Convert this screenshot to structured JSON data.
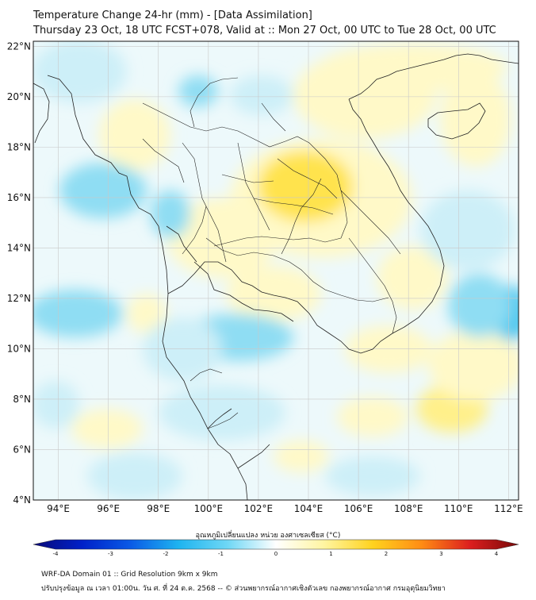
{
  "title_line1": "Temperature Change 24-hr (mm) - [Data Assimilation]",
  "title_line2": "Thursday 23 Oct, 18 UTC FCST+078, Valid at :: Mon 27 Oct, 00 UTC to Tue 28 Oct, 00 UTC",
  "lat_labels": [
    "22°N",
    "20°N",
    "18°N",
    "16°N",
    "14°N",
    "12°N",
    "10°N",
    "8°N",
    "6°N",
    "4°N"
  ],
  "lon_labels": [
    "94°E",
    "96°E",
    "98°E",
    "100°E",
    "102°E",
    "104°E",
    "106°E",
    "108°E",
    "110°E",
    "112°E"
  ],
  "colorbar": {
    "title": "อุณหภูมิเปลี่ยนแปลง หน่วย องศาเซลเซียส (°C)",
    "ticks": [
      "-4",
      "-3",
      "-2",
      "-1",
      "0",
      "1",
      "2",
      "3",
      "4"
    ],
    "colors": [
      "#0a0a78",
      "#0020c8",
      "#0a5ae6",
      "#1eb4f0",
      "#6ed7f5",
      "#ffffff",
      "#fff5a0",
      "#ffd21e",
      "#ff8c14",
      "#dc1e1e",
      "#780a0a"
    ]
  },
  "footer_line1": "WRF-DA Domain 01 :: Grid Resolution 9km x 9km",
  "footer_line2": "ปรับปรุงข้อมูล ณ เวลา 01:00น. วัน ศ. ที่ 24 ต.ค. 2568 -- © ส่วนพยากรณ์อากาศเชิงตัวเลข กองพยากรณ์อากาศ กรมอุตุนิยมวิทยา",
  "field_colors": {
    "background": "#edf9fb",
    "cyan_light": "#cdeff8",
    "cyan": "#8fddf3",
    "cyan_strong": "#4fc8ef",
    "yellow_light": "#fff9c8",
    "yellow": "#fff08a",
    "yellow_strong": "#ffe34d",
    "coast": "#222222",
    "grid": "#c8c8c8"
  }
}
